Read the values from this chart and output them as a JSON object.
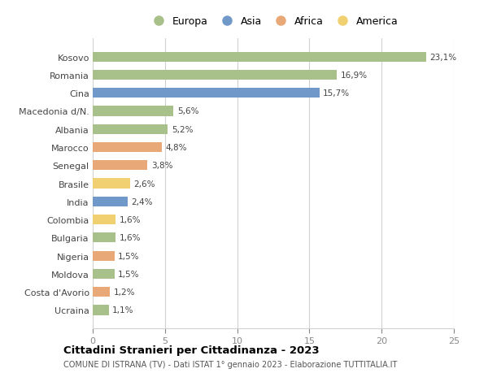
{
  "countries": [
    "Kosovo",
    "Romania",
    "Cina",
    "Macedonia d/N.",
    "Albania",
    "Marocco",
    "Senegal",
    "Brasile",
    "India",
    "Colombia",
    "Bulgaria",
    "Nigeria",
    "Moldova",
    "Costa d'Avorio",
    "Ucraina"
  ],
  "values": [
    23.1,
    16.9,
    15.7,
    5.6,
    5.2,
    4.8,
    3.8,
    2.6,
    2.4,
    1.6,
    1.6,
    1.5,
    1.5,
    1.2,
    1.1
  ],
  "continents": [
    "Europa",
    "Europa",
    "Asia",
    "Europa",
    "Europa",
    "Africa",
    "Africa",
    "America",
    "Asia",
    "America",
    "Europa",
    "Africa",
    "Europa",
    "Africa",
    "Europa"
  ],
  "continent_colors": {
    "Europa": "#a8c08a",
    "Asia": "#7098c8",
    "Africa": "#e8a878",
    "America": "#f0d070"
  },
  "title": "Cittadini Stranieri per Cittadinanza - 2023",
  "subtitle": "COMUNE DI ISTRANA (TV) - Dati ISTAT 1° gennaio 2023 - Elaborazione TUTTITALIA.IT",
  "xlim": [
    0,
    25
  ],
  "xticks": [
    0,
    5,
    10,
    15,
    20,
    25
  ],
  "background_color": "#ffffff",
  "grid_color": "#d0d0d0",
  "bar_height": 0.55,
  "legend_items": [
    "Europa",
    "Asia",
    "Africa",
    "America"
  ]
}
